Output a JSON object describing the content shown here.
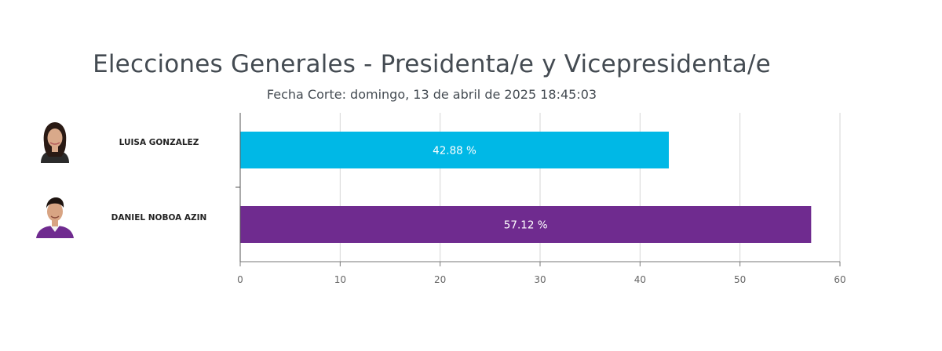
{
  "header": {
    "title": "Elecciones Generales - Presidenta/e y Vicepresidenta/e",
    "subtitle": "Fecha Corte: domingo, 13 de abril de 2025 18:45:03"
  },
  "candidates": [
    {
      "name": "LUISA GONZALEZ",
      "value_label": "42.88 %",
      "color": "#00b8e6"
    },
    {
      "name": "DANIEL NOBOA AZIN",
      "value_label": "57.12 %",
      "color": "#6f2b8f"
    }
  ],
  "chart_data": {
    "type": "bar",
    "orientation": "horizontal",
    "title": "Elecciones Generales - Presidenta/e y Vicepresidenta/e",
    "subtitle": "Fecha Corte: domingo, 13 de abril de 2025 18:45:03",
    "categories": [
      "LUISA GONZALEZ",
      "DANIEL NOBOA AZIN"
    ],
    "values": [
      42.88,
      57.12
    ],
    "data_labels": [
      "42.88 %",
      "57.12 %"
    ],
    "colors": [
      "#00b8e6",
      "#6f2b8f"
    ],
    "xlim": [
      0,
      60
    ],
    "xticks": [
      0,
      10,
      20,
      30,
      40,
      50,
      60
    ],
    "grid": true,
    "legend": "none"
  }
}
